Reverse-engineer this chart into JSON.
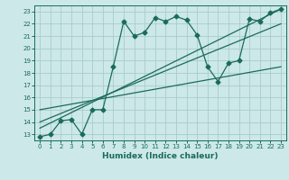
{
  "xlabel": "Humidex (Indice chaleur)",
  "bg_color": "#cce8e8",
  "grid_color": "#aacccc",
  "line_color": "#1a6b5a",
  "xlim": [
    -0.5,
    23.5
  ],
  "ylim": [
    12.5,
    23.5
  ],
  "xticks": [
    0,
    1,
    2,
    3,
    4,
    5,
    6,
    7,
    8,
    9,
    10,
    11,
    12,
    13,
    14,
    15,
    16,
    17,
    18,
    19,
    20,
    21,
    22,
    23
  ],
  "yticks": [
    13,
    14,
    15,
    16,
    17,
    18,
    19,
    20,
    21,
    22,
    23
  ],
  "series1_x": [
    0,
    1,
    2,
    3,
    4,
    5,
    6,
    7,
    8,
    9,
    10,
    11,
    12,
    13,
    14,
    15,
    16,
    17,
    18,
    19,
    20,
    21,
    22,
    23
  ],
  "series1_y": [
    12.8,
    13.0,
    14.1,
    14.2,
    13.0,
    15.0,
    15.0,
    18.5,
    22.2,
    21.0,
    21.3,
    22.5,
    22.2,
    22.6,
    22.3,
    21.1,
    18.5,
    17.3,
    18.8,
    19.0,
    22.4,
    22.2,
    22.9,
    23.2
  ],
  "line1_x": [
    0,
    23
  ],
  "line1_y": [
    13.5,
    23.2
  ],
  "line2_x": [
    0,
    23
  ],
  "line2_y": [
    14.0,
    22.0
  ],
  "line3_x": [
    0,
    23
  ],
  "line3_y": [
    15.0,
    18.5
  ],
  "marker_size": 2.5,
  "line_width": 0.9,
  "tick_fontsize": 5.0,
  "xlabel_fontsize": 6.5
}
